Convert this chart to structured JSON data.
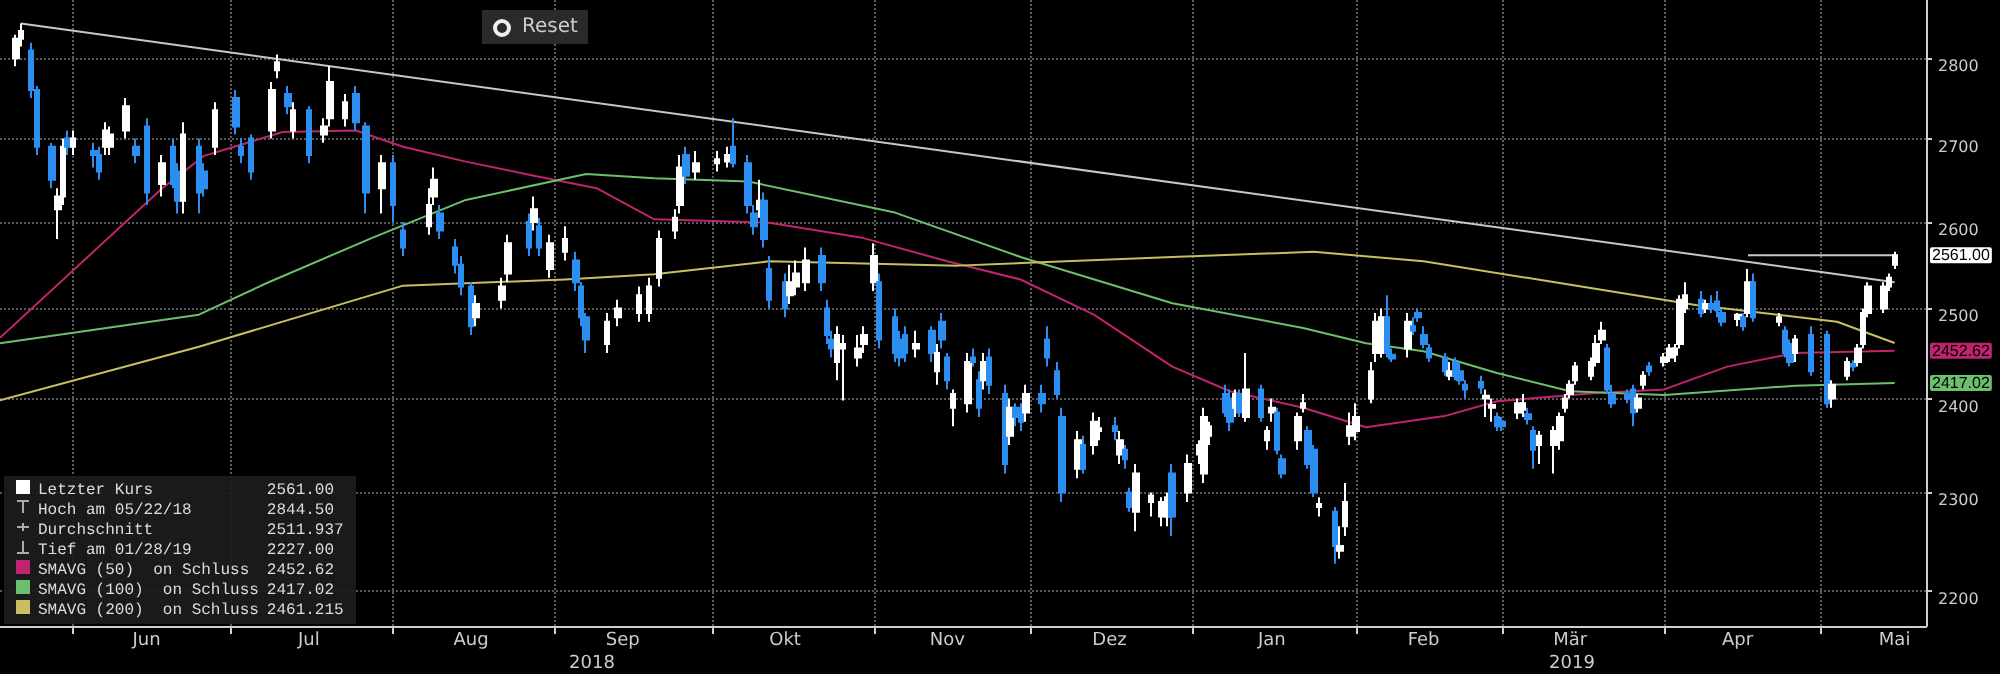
{
  "chart_data": {
    "type": "candlestick",
    "log": true,
    "grid": true,
    "legend": "bottom left",
    "marker": "none",
    "xlim": [
      "2018-05-18",
      "2019-05-21"
    ],
    "xticks": [
      {
        "value": "2018-06-01",
        "label": null
      },
      {
        "value": "2018-06-15",
        "label": "Jun"
      },
      {
        "value": "2018-07-01",
        "label": null
      },
      {
        "value": "2018-07-16",
        "label": "Jul"
      },
      {
        "value": "2018-08-01",
        "label": null
      },
      {
        "value": "2018-08-16",
        "label": "Aug"
      },
      {
        "value": "2018-09-01",
        "label": null
      },
      {
        "value": "2018-09-14",
        "label": "Sep"
      },
      {
        "value": "2018-10-01",
        "label": null
      },
      {
        "value": "2018-10-15",
        "label": "Okt"
      },
      {
        "value": "2018-11-01",
        "label": null
      },
      {
        "value": "2018-11-15",
        "label": "Nov"
      },
      {
        "value": "2018-12-01",
        "label": null
      },
      {
        "value": "2018-12-16",
        "label": "Dez"
      },
      {
        "value": "2019-01-01",
        "label": null
      },
      {
        "value": "2019-01-16",
        "label": "Jan"
      },
      {
        "value": "2019-02-01",
        "label": null
      },
      {
        "value": "2019-02-14",
        "label": "Feb"
      },
      {
        "value": "2019-03-01",
        "label": null
      },
      {
        "value": "2019-03-14",
        "label": "Mär"
      },
      {
        "value": "2019-04-01",
        "label": null
      },
      {
        "value": "2019-04-15",
        "label": "Apr"
      },
      {
        "value": "2019-05-01",
        "label": null
      },
      {
        "value": "2019-05-15",
        "label": "Mai"
      }
    ],
    "ylim": [
      2165,
      2875
    ],
    "yticks": [
      2200,
      2300,
      2400,
      2500,
      2600,
      2700,
      2800
    ],
    "annotations": [
      "Reset",
      "2561.00",
      "Hoch am 05/22/18",
      "2844.50",
      "Durchschnitt",
      "2511.937",
      "Tief am 01/28/19",
      "2227.00",
      "2452.62",
      "2417.02",
      "2461.215",
      "2018",
      "2019",
      {
        "text": "2561.00",
        "x": "2019-05-15",
        "y": 2561
      },
      {
        "text": "2452.62",
        "x": "2019-05-15",
        "y": 2452.62
      },
      {
        "text": "2417.02",
        "x": "2019-05-15",
        "y": 2417.02
      }
    ],
    "series": [
      {
        "name": "Letzter Kurs",
        "color": "#ffffff",
        "x": [
          "2018-05-21",
          "2018-05-22",
          "2018-05-24",
          "2018-05-25",
          "2018-05-28",
          "2018-05-29",
          "2018-05-30",
          "2018-05-31",
          "2018-06-01",
          "2018-06-05",
          "2018-06-06",
          "2018-06-07",
          "2018-06-08",
          "2018-06-11",
          "2018-06-13",
          "2018-06-15",
          "2018-06-18",
          "2018-06-20",
          "2018-06-21",
          "2018-06-22",
          "2018-06-25",
          "2018-06-26",
          "2018-06-28",
          "2018-07-02",
          "2018-07-03",
          "2018-07-05",
          "2018-07-09",
          "2018-07-10",
          "2018-07-12",
          "2018-07-13",
          "2018-07-16",
          "2018-07-19",
          "2018-07-20",
          "2018-07-23",
          "2018-07-25",
          "2018-07-27",
          "2018-07-30",
          "2018-08-01",
          "2018-08-03",
          "2018-08-08",
          "2018-08-09",
          "2018-08-10",
          "2018-08-13",
          "2018-08-14",
          "2018-08-16",
          "2018-08-17",
          "2018-08-22",
          "2018-08-23",
          "2018-08-27",
          "2018-08-28",
          "2018-08-29",
          "2018-08-31",
          "2018-09-03",
          "2018-09-05",
          "2018-09-06",
          "2018-09-07",
          "2018-09-11",
          "2018-09-13",
          "2018-09-17",
          "2018-09-19",
          "2018-09-21",
          "2018-09-24",
          "2018-09-25",
          "2018-09-26",
          "2018-09-28",
          "2018-10-02",
          "2018-10-04",
          "2018-10-05",
          "2018-10-08",
          "2018-10-09",
          "2018-10-10",
          "2018-10-11",
          "2018-10-12",
          "2018-10-15",
          "2018-10-16",
          "2018-10-17",
          "2018-10-19",
          "2018-10-22",
          "2018-10-23",
          "2018-10-24",
          "2018-10-25",
          "2018-10-26",
          "2018-10-29",
          "2018-10-30",
          "2018-11-01",
          "2018-11-02",
          "2018-11-05",
          "2018-11-06",
          "2018-11-07",
          "2018-11-09",
          "2018-11-12",
          "2018-11-13",
          "2018-11-14",
          "2018-11-15",
          "2018-11-16",
          "2018-11-19",
          "2018-11-20",
          "2018-11-21",
          "2018-11-22",
          "2018-11-23",
          "2018-11-26",
          "2018-11-27",
          "2018-11-28",
          "2018-11-29",
          "2018-11-30",
          "2018-12-03",
          "2018-12-04",
          "2018-12-06",
          "2018-12-07",
          "2018-12-10",
          "2018-12-11",
          "2018-12-13",
          "2018-12-14",
          "2018-12-17",
          "2018-12-18",
          "2018-12-19",
          "2018-12-20",
          "2018-12-21",
          "2018-12-24",
          "2018-12-26",
          "2018-12-27",
          "2018-12-28",
          "2018-12-31",
          "2019-01-02",
          "2019-01-03",
          "2019-01-04",
          "2019-01-07",
          "2019-01-08",
          "2019-01-09",
          "2019-01-10",
          "2019-01-11",
          "2019-01-14",
          "2019-01-15",
          "2019-01-16",
          "2019-01-17",
          "2019-01-18",
          "2019-01-21",
          "2019-01-22",
          "2019-01-23",
          "2019-01-24",
          "2019-01-25",
          "2019-01-28",
          "2019-01-29",
          "2019-01-30",
          "2019-01-31",
          "2019-02-01",
          "2019-02-04",
          "2019-02-05",
          "2019-02-06",
          "2019-02-07",
          "2019-02-08",
          "2019-02-11",
          "2019-02-12",
          "2019-02-13",
          "2019-02-14",
          "2019-02-15",
          "2019-02-18",
          "2019-02-19",
          "2019-02-20",
          "2019-02-21",
          "2019-02-22",
          "2019-02-25",
          "2019-02-26",
          "2019-02-27",
          "2019-02-28",
          "2019-03-01",
          "2019-03-04",
          "2019-03-05",
          "2019-03-06",
          "2019-03-07",
          "2019-03-08",
          "2019-03-11",
          "2019-03-12",
          "2019-03-13",
          "2019-03-14",
          "2019-03-15",
          "2019-03-18",
          "2019-03-19",
          "2019-03-20",
          "2019-03-21",
          "2019-03-22",
          "2019-03-25",
          "2019-03-26",
          "2019-03-27",
          "2019-03-28",
          "2019-03-29",
          "2019-04-01",
          "2019-04-02",
          "2019-04-03",
          "2019-04-04",
          "2019-04-05",
          "2019-04-08",
          "2019-04-09",
          "2019-04-10",
          "2019-04-11",
          "2019-04-12",
          "2019-04-15",
          "2019-04-16",
          "2019-04-17",
          "2019-04-18",
          "2019-04-23",
          "2019-04-24",
          "2019-04-25",
          "2019-04-26",
          "2019-04-29",
          "2019-05-02",
          "2019-05-03",
          "2019-05-06",
          "2019-05-07",
          "2019-05-08",
          "2019-05-09",
          "2019-05-10",
          "2019-05-13",
          "2019-05-14",
          "2019-05-15"
        ],
        "ohlc": [
          [
            2800,
            2830,
            2790,
            2825
          ],
          [
            2825,
            2844.5,
            2815,
            2835
          ],
          [
            2810,
            2820,
            2750,
            2760
          ],
          [
            2760,
            2765,
            2680,
            2690
          ],
          [
            2690,
            2695,
            2640,
            2650
          ],
          [
            2615,
            2640,
            2580,
            2630
          ],
          [
            2630,
            2700,
            2620,
            2690
          ],
          [
            2700,
            2710,
            2680,
            2690
          ],
          [
            2690,
            2710,
            2680,
            2700
          ],
          [
            2685,
            2695,
            2665,
            2680
          ],
          [
            2680,
            2690,
            2650,
            2660
          ],
          [
            2690,
            2720,
            2680,
            2710
          ],
          [
            2690,
            2715,
            2680,
            2705
          ],
          [
            2710,
            2750,
            2700,
            2740
          ],
          [
            2690,
            2700,
            2670,
            2680
          ],
          [
            2715,
            2725,
            2620,
            2635
          ],
          [
            2645,
            2680,
            2630,
            2670
          ],
          [
            2690,
            2700,
            2640,
            2645
          ],
          [
            2660,
            2670,
            2610,
            2625
          ],
          [
            2625,
            2720,
            2610,
            2705
          ],
          [
            2690,
            2700,
            2610,
            2635
          ],
          [
            2660,
            2670,
            2630,
            2640
          ],
          [
            2690,
            2745,
            2680,
            2735
          ],
          [
            2750,
            2760,
            2705,
            2715
          ],
          [
            2690,
            2700,
            2670,
            2680
          ],
          [
            2700,
            2705,
            2650,
            2660
          ],
          [
            2710,
            2770,
            2700,
            2760
          ],
          [
            2785,
            2805,
            2775,
            2795
          ],
          [
            2755,
            2765,
            2730,
            2740
          ],
          [
            2710,
            2745,
            2700,
            2735
          ],
          [
            2735,
            2740,
            2670,
            2680
          ],
          [
            2705,
            2725,
            2695,
            2715
          ],
          [
            2725,
            2790,
            2715,
            2770
          ],
          [
            2725,
            2755,
            2715,
            2745
          ],
          [
            2755,
            2765,
            2710,
            2720
          ],
          [
            2715,
            2720,
            2610,
            2635
          ],
          [
            2640,
            2680,
            2610,
            2670
          ],
          [
            2670,
            2680,
            2600,
            2620
          ],
          [
            2590,
            2600,
            2560,
            2570
          ],
          [
            2595,
            2640,
            2585,
            2620
          ],
          [
            2630,
            2665,
            2620,
            2650
          ],
          [
            2610,
            2620,
            2580,
            2590
          ],
          [
            2570,
            2580,
            2540,
            2550
          ],
          [
            2550,
            2560,
            2515,
            2525
          ],
          [
            2525,
            2530,
            2470,
            2480
          ],
          [
            2490,
            2515,
            2480,
            2505
          ],
          [
            2510,
            2535,
            2500,
            2525
          ],
          [
            2540,
            2585,
            2530,
            2575
          ],
          [
            2600,
            2610,
            2560,
            2570
          ],
          [
            2600,
            2630,
            2590,
            2615
          ],
          [
            2595,
            2605,
            2560,
            2570
          ],
          [
            2545,
            2585,
            2535,
            2575
          ],
          [
            2565,
            2595,
            2555,
            2580
          ],
          [
            2555,
            2565,
            2520,
            2530
          ],
          [
            2525,
            2530,
            2480,
            2490
          ],
          [
            2490,
            2495,
            2450,
            2465
          ],
          [
            2460,
            2495,
            2450,
            2485
          ],
          [
            2490,
            2510,
            2480,
            2500
          ],
          [
            2495,
            2525,
            2485,
            2515
          ],
          [
            2495,
            2535,
            2485,
            2525
          ],
          [
            2535,
            2590,
            2525,
            2580
          ],
          [
            2590,
            2615,
            2580,
            2605
          ],
          [
            2620,
            2680,
            2610,
            2665
          ],
          [
            2680,
            2690,
            2645,
            2655
          ],
          [
            2660,
            2685,
            2650,
            2670
          ],
          [
            2670,
            2685,
            2660,
            2675
          ],
          [
            2672,
            2690,
            2665,
            2680
          ],
          [
            2690,
            2725,
            2665,
            2670
          ],
          [
            2670,
            2680,
            2610,
            2620
          ],
          [
            2610,
            2620,
            2585,
            2595
          ],
          [
            2615,
            2650,
            2605,
            2625
          ],
          [
            2625,
            2635,
            2570,
            2580
          ],
          [
            2545,
            2560,
            2500,
            2510
          ],
          [
            2530,
            2540,
            2490,
            2500
          ],
          [
            2515,
            2550,
            2505,
            2530
          ],
          [
            2525,
            2555,
            2515,
            2540
          ],
          [
            2530,
            2570,
            2520,
            2555
          ],
          [
            2560,
            2570,
            2520,
            2530
          ],
          [
            2500,
            2510,
            2460,
            2470
          ],
          [
            2465,
            2475,
            2445,
            2455
          ],
          [
            2440,
            2480,
            2420,
            2470
          ],
          [
            2455,
            2470,
            2398,
            2460
          ],
          [
            2445,
            2470,
            2435,
            2455
          ],
          [
            2460,
            2480,
            2450,
            2470
          ],
          [
            2530,
            2575,
            2520,
            2560
          ],
          [
            2530,
            2540,
            2455,
            2465
          ],
          [
            2490,
            2500,
            2440,
            2450
          ],
          [
            2465,
            2475,
            2435,
            2445
          ],
          [
            2470,
            2480,
            2440,
            2450
          ],
          [
            2455,
            2475,
            2445,
            2460
          ],
          [
            2475,
            2480,
            2440,
            2450
          ],
          [
            2430,
            2460,
            2415,
            2450
          ],
          [
            2485,
            2495,
            2455,
            2465
          ],
          [
            2445,
            2450,
            2410,
            2420
          ],
          [
            2390,
            2410,
            2370,
            2405
          ],
          [
            2395,
            2450,
            2385,
            2440
          ],
          [
            2445,
            2455,
            2435,
            2440
          ],
          [
            2420,
            2430,
            2380,
            2390
          ],
          [
            2420,
            2450,
            2410,
            2440
          ],
          [
            2445,
            2455,
            2405,
            2415
          ],
          [
            2405,
            2415,
            2320,
            2330
          ],
          [
            2360,
            2400,
            2350,
            2390
          ],
          [
            2390,
            2395,
            2370,
            2380
          ],
          [
            2390,
            2395,
            2365,
            2375
          ],
          [
            2385,
            2415,
            2375,
            2405
          ],
          [
            2405,
            2415,
            2385,
            2395
          ],
          [
            2465,
            2480,
            2435,
            2445
          ],
          [
            2430,
            2440,
            2400,
            2405
          ],
          [
            2380,
            2390,
            2290,
            2300
          ],
          [
            2325,
            2365,
            2315,
            2355
          ],
          [
            2350,
            2360,
            2320,
            2325
          ],
          [
            2350,
            2385,
            2340,
            2375
          ],
          [
            2365,
            2380,
            2355,
            2368
          ],
          [
            2370,
            2380,
            2355,
            2365
          ],
          [
            2340,
            2365,
            2330,
            2355
          ],
          [
            2345,
            2350,
            2325,
            2335
          ],
          [
            2300,
            2305,
            2280,
            2285
          ],
          [
            2280,
            2330,
            2260,
            2320
          ],
          [
            2290,
            2300,
            2275,
            2297
          ],
          [
            2275,
            2295,
            2265,
            2290
          ],
          [
            2275,
            2300,
            2265,
            2295
          ],
          [
            2320,
            2330,
            2255,
            2275
          ],
          [
            2300,
            2340,
            2290,
            2330
          ],
          [
            2340,
            2355,
            2330,
            2350
          ],
          [
            2320,
            2390,
            2310,
            2380
          ],
          [
            2360,
            2375,
            2350,
            2370
          ],
          [
            2405,
            2415,
            2380,
            2385
          ],
          [
            2400,
            2410,
            2365,
            2375
          ],
          [
            2390,
            2410,
            2380,
            2405
          ],
          [
            2405,
            2410,
            2380,
            2385
          ],
          [
            2380,
            2450,
            2375,
            2410
          ],
          [
            2410,
            2415,
            2375,
            2380
          ],
          [
            2355,
            2370,
            2345,
            2365
          ],
          [
            2385,
            2400,
            2375,
            2390
          ],
          [
            2385,
            2390,
            2340,
            2345
          ],
          [
            2335,
            2340,
            2315,
            2320
          ],
          [
            2355,
            2385,
            2345,
            2380
          ],
          [
            2390,
            2405,
            2385,
            2395
          ],
          [
            2365,
            2370,
            2325,
            2330
          ],
          [
            2345,
            2350,
            2295,
            2300
          ],
          [
            2285,
            2295,
            2275,
            2288
          ],
          [
            2280,
            2285,
            2227,
            2245
          ],
          [
            2240,
            2265,
            2232,
            2245
          ],
          [
            2265,
            2310,
            2255,
            2290
          ],
          [
            2360,
            2385,
            2350,
            2370
          ],
          [
            2365,
            2395,
            2355,
            2380
          ],
          [
            2400,
            2440,
            2395,
            2430
          ],
          [
            2450,
            2495,
            2440,
            2485
          ],
          [
            2450,
            2500,
            2445,
            2490
          ],
          [
            2490,
            2515,
            2445,
            2450
          ],
          [
            2448,
            2455,
            2440,
            2444
          ],
          [
            2455,
            2495,
            2445,
            2485
          ],
          [
            2480,
            2490,
            2470,
            2475
          ],
          [
            2495,
            2500,
            2485,
            2490
          ],
          [
            2470,
            2480,
            2455,
            2460
          ],
          [
            2455,
            2460,
            2440,
            2445
          ],
          [
            2445,
            2450,
            2425,
            2430
          ],
          [
            2425,
            2440,
            2420,
            2430
          ],
          [
            2440,
            2445,
            2420,
            2425
          ],
          [
            2430,
            2440,
            2415,
            2420
          ],
          [
            2415,
            2420,
            2400,
            2410
          ],
          [
            2418,
            2425,
            2405,
            2412
          ],
          [
            2400,
            2410,
            2380,
            2403
          ],
          [
            2390,
            2400,
            2375,
            2393
          ],
          [
            2380,
            2385,
            2365,
            2370
          ],
          [
            2375,
            2380,
            2365,
            2370
          ],
          [
            2385,
            2400,
            2378,
            2395
          ],
          [
            2388,
            2405,
            2380,
            2395
          ],
          [
            2383,
            2390,
            2372,
            2378
          ],
          [
            2365,
            2370,
            2325,
            2345
          ],
          [
            2350,
            2365,
            2330,
            2360
          ],
          [
            2350,
            2370,
            2320,
            2365
          ],
          [
            2355,
            2385,
            2345,
            2380
          ],
          [
            2390,
            2405,
            2385,
            2400
          ],
          [
            2405,
            2420,
            2400,
            2415
          ],
          [
            2420,
            2440,
            2415,
            2435
          ],
          [
            2425,
            2445,
            2420,
            2440
          ],
          [
            2440,
            2470,
            2435,
            2460
          ],
          [
            2465,
            2485,
            2460,
            2475
          ],
          [
            2455,
            2460,
            2405,
            2410
          ],
          [
            2405,
            2415,
            2390,
            2395
          ],
          [
            2405,
            2410,
            2395,
            2400
          ],
          [
            2410,
            2415,
            2370,
            2385
          ],
          [
            2390,
            2405,
            2385,
            2400
          ],
          [
            2415,
            2430,
            2410,
            2425
          ],
          [
            2435,
            2440,
            2425,
            2430
          ],
          [
            2440,
            2450,
            2435,
            2445
          ],
          [
            2445,
            2460,
            2440,
            2455
          ],
          [
            2448,
            2460,
            2440,
            2455
          ],
          [
            2460,
            2515,
            2455,
            2510
          ],
          [
            2500,
            2530,
            2495,
            2515
          ],
          [
            2510,
            2520,
            2490,
            2495
          ],
          [
            2500,
            2510,
            2495,
            2505
          ],
          [
            2505,
            2515,
            2495,
            2500
          ],
          [
            2508,
            2520,
            2490,
            2498
          ],
          [
            2495,
            2500,
            2480,
            2485
          ],
          [
            2488,
            2495,
            2480,
            2493
          ],
          [
            2490,
            2495,
            2475,
            2480
          ],
          [
            2495,
            2545,
            2490,
            2530
          ],
          [
            2530,
            2540,
            2485,
            2490
          ],
          [
            2485,
            2495,
            2480,
            2490
          ],
          [
            2475,
            2480,
            2445,
            2450
          ],
          [
            2460,
            2465,
            2435,
            2440
          ],
          [
            2450,
            2470,
            2440,
            2465
          ],
          [
            2470,
            2480,
            2425,
            2430
          ],
          [
            2470,
            2475,
            2390,
            2395
          ],
          [
            2400,
            2420,
            2390,
            2415
          ],
          [
            2425,
            2445,
            2420,
            2440
          ],
          [
            2438,
            2442,
            2430,
            2435
          ],
          [
            2440,
            2460,
            2435,
            2455
          ],
          [
            2460,
            2500,
            2455,
            2495
          ],
          [
            2495,
            2530,
            2490,
            2525
          ],
          [
            2500,
            2530,
            2495,
            2525
          ],
          [
            2525,
            2540,
            2520,
            2535
          ],
          [
            2550,
            2565,
            2545,
            2561
          ]
        ],
        "colors": [
          "#ffffff",
          "#ffffff",
          "#2b8ef0",
          "#2b8ef0",
          "#2b8ef0",
          "#ffffff",
          "#ffffff",
          "#2b8ef0",
          "#ffffff",
          "#2b8ef0",
          "#2b8ef0",
          "#ffffff",
          "#ffffff",
          "#ffffff",
          "#2b8ef0",
          "#2b8ef0",
          "#ffffff",
          "#2b8ef0",
          "#2b8ef0",
          "#ffffff",
          "#2b8ef0",
          "#2b8ef0",
          "#ffffff",
          "#2b8ef0",
          "#2b8ef0",
          "#2b8ef0",
          "#ffffff",
          "#ffffff",
          "#2b8ef0",
          "#ffffff",
          "#2b8ef0",
          "#ffffff",
          "#ffffff",
          "#ffffff",
          "#2b8ef0",
          "#2b8ef0",
          "#ffffff",
          "#2b8ef0",
          "#2b8ef0",
          "#ffffff",
          "#ffffff",
          "#2b8ef0",
          "#2b8ef0",
          "#2b8ef0",
          "#2b8ef0",
          "#ffffff",
          "#ffffff",
          "#ffffff",
          "#2b8ef0",
          "#ffffff",
          "#2b8ef0",
          "#ffffff",
          "#ffffff",
          "#2b8ef0",
          "#2b8ef0",
          "#2b8ef0",
          "#ffffff",
          "#ffffff",
          "#ffffff",
          "#ffffff",
          "#ffffff",
          "#ffffff",
          "#ffffff",
          "#2b8ef0",
          "#ffffff",
          "#ffffff",
          "#ffffff",
          "#2b8ef0",
          "#2b8ef0",
          "#2b8ef0",
          "#ffffff",
          "#2b8ef0",
          "#2b8ef0",
          "#2b8ef0",
          "#ffffff",
          "#ffffff",
          "#ffffff",
          "#2b8ef0",
          "#2b8ef0",
          "#2b8ef0",
          "#ffffff",
          "#ffffff",
          "#ffffff",
          "#ffffff",
          "#ffffff",
          "#2b8ef0",
          "#2b8ef0",
          "#2b8ef0",
          "#2b8ef0",
          "#ffffff",
          "#2b8ef0",
          "#ffffff",
          "#2b8ef0",
          "#2b8ef0",
          "#ffffff",
          "#ffffff",
          "#2b8ef0",
          "#2b8ef0",
          "#ffffff",
          "#2b8ef0",
          "#2b8ef0",
          "#ffffff",
          "#2b8ef0",
          "#2b8ef0",
          "#ffffff",
          "#2b8ef0",
          "#2b8ef0",
          "#2b8ef0",
          "#2b8ef0",
          "#ffffff",
          "#2b8ef0",
          "#ffffff",
          "#ffffff",
          "#2b8ef0",
          "#ffffff",
          "#2b8ef0",
          "#2b8ef0",
          "#ffffff",
          "#ffffff",
          "#ffffff",
          "#ffffff",
          "#2b8ef0",
          "#ffffff",
          "#ffffff",
          "#ffffff",
          "#ffffff",
          "#2b8ef0",
          "#2b8ef0",
          "#ffffff",
          "#2b8ef0",
          "#ffffff",
          "#2b8ef0",
          "#ffffff",
          "#ffffff",
          "#2b8ef0",
          "#2b8ef0",
          "#ffffff",
          "#ffffff",
          "#2b8ef0",
          "#2b8ef0",
          "#ffffff",
          "#2b8ef0",
          "#ffffff",
          "#ffffff",
          "#ffffff",
          "#ffffff",
          "#ffffff",
          "#ffffff",
          "#ffffff",
          "#2b8ef0",
          "#2b8ef0",
          "#ffffff",
          "#2b8ef0",
          "#2b8ef0",
          "#2b8ef0",
          "#2b8ef0",
          "#2b8ef0",
          "#ffffff",
          "#2b8ef0",
          "#2b8ef0",
          "#2b8ef0",
          "#2b8ef0",
          "#ffffff",
          "#ffffff",
          "#2b8ef0",
          "#2b8ef0",
          "#ffffff",
          "#ffffff",
          "#2b8ef0",
          "#2b8ef0",
          "#ffffff",
          "#ffffff",
          "#ffffff",
          "#ffffff",
          "#ffffff",
          "#ffffff",
          "#ffffff",
          "#ffffff",
          "#ffffff",
          "#2b8ef0",
          "#2b8ef0",
          "#2b8ef0",
          "#2b8ef0",
          "#ffffff",
          "#ffffff",
          "#2b8ef0",
          "#ffffff",
          "#ffffff",
          "#ffffff",
          "#ffffff",
          "#ffffff",
          "#2b8ef0",
          "#ffffff",
          "#2b8ef0",
          "#2b8ef0",
          "#2b8ef0",
          "#ffffff",
          "#2b8ef0",
          "#ffffff",
          "#2b8ef0",
          "#ffffff",
          "#2b8ef0",
          "#2b8ef0",
          "#ffffff",
          "#2b8ef0",
          "#2b8ef0",
          "#ffffff",
          "#ffffff",
          "#2b8ef0",
          "#ffffff",
          "#ffffff",
          "#ffffff",
          "#ffffff",
          "#ffffff",
          "#ffffff"
        ]
      },
      {
        "type": "line",
        "name": "SMAVG (50)  on Schluss",
        "color": "#c0246e",
        "x": [
          "2018-05-18",
          "2018-06-18",
          "2018-06-26",
          "2018-07-11",
          "2018-07-25",
          "2018-08-03",
          "2018-08-15",
          "2018-08-28",
          "2018-09-09",
          "2018-09-20",
          "2018-10-12",
          "2018-10-30",
          "2018-11-15",
          "2018-11-29",
          "2018-12-13",
          "2018-12-28",
          "2019-01-08",
          "2019-01-22",
          "2019-02-03",
          "2019-02-18",
          "2019-02-28",
          "2019-03-19",
          "2019-04-01",
          "2019-04-13",
          "2019-04-26",
          "2019-05-15"
        ],
        "values": [
          2467,
          2640,
          2679,
          2708,
          2710,
          2690,
          2672,
          2655,
          2640,
          2603,
          2599,
          2581,
          2554,
          2533,
          2493,
          2435,
          2408,
          2390,
          2369,
          2381,
          2397,
          2406,
          2410,
          2435,
          2450,
          2452.62
        ]
      },
      {
        "type": "line",
        "name": "SMAVG (100)  on Schluss",
        "color": "#6cbf6c",
        "x": [
          "2018-05-18",
          "2018-06-25",
          "2018-07-08",
          "2018-07-28",
          "2018-08-15",
          "2018-09-07",
          "2018-09-20",
          "2018-10-08",
          "2018-11-05",
          "2018-11-29",
          "2018-12-28",
          "2019-01-22",
          "2019-02-03",
          "2019-02-14",
          "2019-02-28",
          "2019-03-14",
          "2019-04-01",
          "2019-04-26",
          "2019-05-15"
        ],
        "values": [
          2461,
          2493,
          2529,
          2581,
          2626,
          2657,
          2652,
          2648,
          2611,
          2559,
          2506,
          2478,
          2461,
          2452,
          2428,
          2408,
          2404,
          2414,
          2417.02
        ]
      },
      {
        "type": "line",
        "name": "SMAVG (200)  on Schluss",
        "color": "#c8c060",
        "x": [
          "2018-05-18",
          "2018-06-25",
          "2018-08-03",
          "2018-09-03",
          "2018-09-20",
          "2018-10-12",
          "2018-11-17",
          "2018-12-28",
          "2019-01-24",
          "2019-02-14",
          "2019-03-12",
          "2019-04-07",
          "2019-05-04",
          "2019-05-15"
        ],
        "values": [
          2398,
          2457,
          2526,
          2533,
          2539,
          2554,
          2549,
          2559,
          2565,
          2554,
          2529,
          2504,
          2485,
          2461.215
        ]
      },
      {
        "type": "line",
        "color": "#c8c8c8",
        "x": [
          "2018-05-22",
          "2019-05-15"
        ],
        "values": [
          2844.5,
          2530
        ]
      },
      {
        "type": "line",
        "color": "#c8c8c8",
        "x": [
          "2019-04-17",
          "2019-05-15"
        ],
        "values": [
          2561,
          2561
        ]
      }
    ]
  }
}
